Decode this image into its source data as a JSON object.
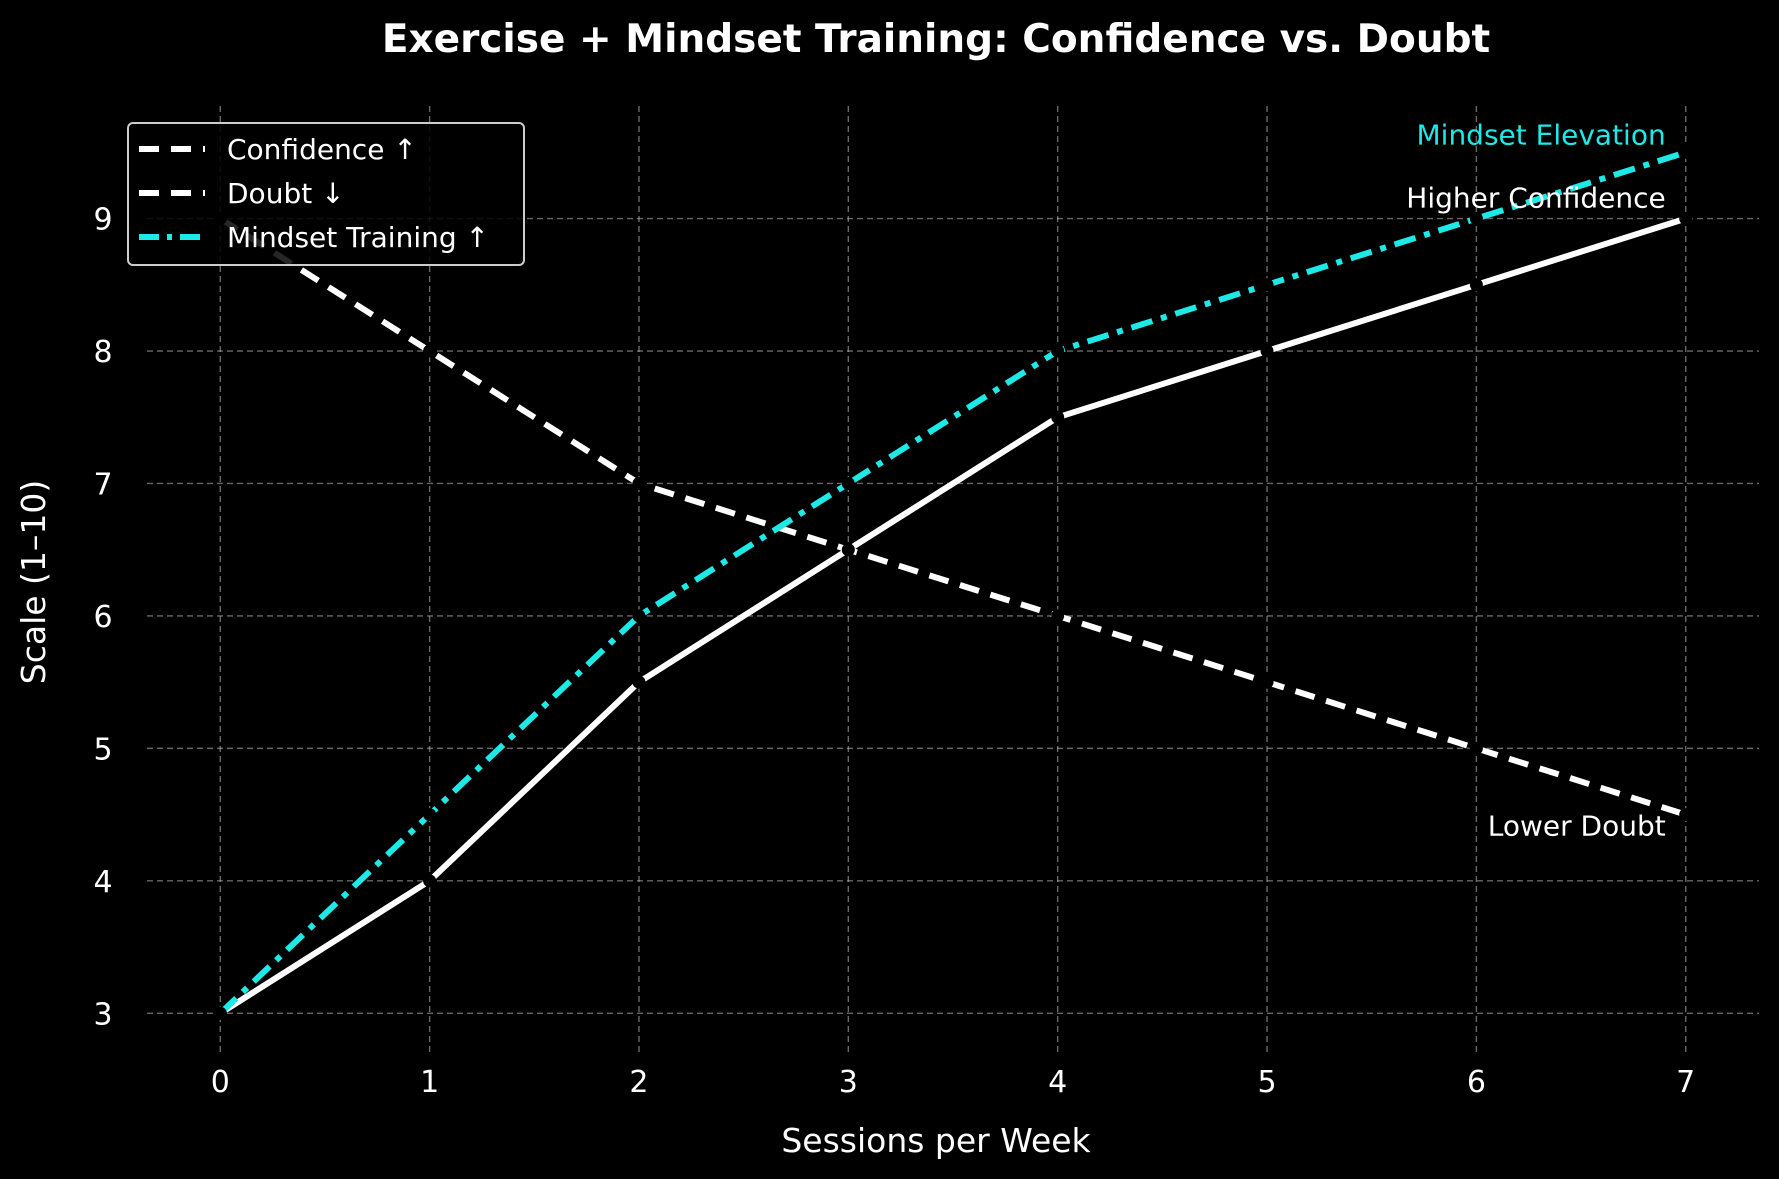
{
  "chart_data": {
    "type": "line",
    "title": "Exercise + Mindset Training: Confidence vs. Doubt",
    "xlabel": "Sessions per Week",
    "ylabel": "Scale (1–10)",
    "x": [
      0,
      1,
      2,
      3,
      4,
      5,
      6,
      7
    ],
    "xlim": [
      -0.35,
      7.35
    ],
    "ylim": [
      2.7,
      9.85
    ],
    "xticks": [
      0,
      1,
      2,
      3,
      4,
      5,
      6,
      7
    ],
    "yticks": [
      3,
      4,
      5,
      6,
      7,
      8,
      9
    ],
    "grid": true,
    "legend_position": "top-left",
    "series": [
      {
        "name": "Confidence ↑",
        "values": [
          3,
          4,
          5.5,
          6.5,
          7.5,
          8,
          8.5,
          9
        ],
        "color": "#ffffff",
        "style": "solid",
        "legend_style": "dashed"
      },
      {
        "name": "Doubt ↓",
        "values": [
          9,
          8,
          7,
          6.5,
          6,
          5.5,
          5,
          4.5
        ],
        "color": "#ffffff",
        "style": "dashed",
        "legend_style": "dashed"
      },
      {
        "name": "Mindset Training ↑",
        "values": [
          3,
          4.5,
          6,
          7,
          8,
          8.5,
          9,
          9.5
        ],
        "color": "#1de9e6",
        "style": "dashdot",
        "legend_style": "dotted"
      }
    ],
    "annotations": [
      {
        "text": "Mindset Elevation",
        "x": 7,
        "y": 9.5,
        "color": "#1de9e6"
      },
      {
        "text": "Higher Confidence",
        "x": 7,
        "y": 9,
        "color": "#ffffff"
      },
      {
        "text": "Lower Doubt",
        "x": 7,
        "y": 4.5,
        "color": "#ffffff"
      }
    ]
  }
}
